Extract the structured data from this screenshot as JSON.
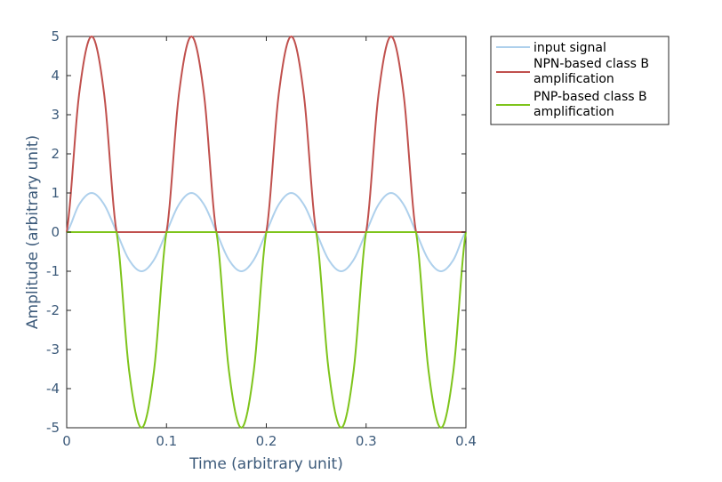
{
  "chart_data": {
    "type": "line",
    "title": "",
    "xlabel": "Time (arbitrary unit)",
    "ylabel": "Amplitude (arbitrary unit)",
    "xlim": [
      0,
      0.4
    ],
    "ylim": [
      -5,
      5
    ],
    "xticks": [
      0,
      0.1,
      0.2,
      0.3,
      0.4
    ],
    "xtick_labels": [
      "0",
      "0.1",
      "0.2",
      "0.3",
      "0.4"
    ],
    "yticks": [
      -5,
      -4,
      -3,
      -2,
      -1,
      0,
      1,
      2,
      3,
      4,
      5
    ],
    "ytick_labels": [
      "-5",
      "-4",
      "-3",
      "-2",
      "-1",
      "0",
      "1",
      "2",
      "3",
      "4",
      "5"
    ],
    "grid": false,
    "legend_position": "outside-top-right",
    "x": [
      0,
      0.0125,
      0.025,
      0.0375,
      0.05,
      0.0625,
      0.075,
      0.0875,
      0.1,
      0.1125,
      0.125,
      0.1375,
      0.15,
      0.1625,
      0.175,
      0.1875,
      0.2,
      0.2125,
      0.225,
      0.2375,
      0.25,
      0.2625,
      0.275,
      0.2875,
      0.3,
      0.3125,
      0.325,
      0.3375,
      0.35,
      0.3625,
      0.375,
      0.3875,
      0.4
    ],
    "series": [
      {
        "name": "input signal",
        "color": "#aed0ec",
        "values": [
          0,
          0.707,
          1,
          0.707,
          0,
          -0.707,
          -1,
          -0.707,
          0,
          0.707,
          1,
          0.707,
          0,
          -0.707,
          -1,
          -0.707,
          0,
          0.707,
          1,
          0.707,
          0,
          -0.707,
          -1,
          -0.707,
          0,
          0.707,
          1,
          0.707,
          0,
          -0.707,
          -1,
          -0.707,
          0
        ]
      },
      {
        "name_lines": [
          "NPN-based class B",
          "amplification"
        ],
        "color": "#c0504d",
        "values": [
          0,
          3.536,
          5,
          3.536,
          0,
          0,
          0,
          0,
          0,
          3.536,
          5,
          3.536,
          0,
          0,
          0,
          0,
          0,
          3.536,
          5,
          3.536,
          0,
          0,
          0,
          0,
          0,
          3.536,
          5,
          3.536,
          0,
          0,
          0,
          0,
          0
        ]
      },
      {
        "name_lines": [
          "PNP-based class B",
          "amplification"
        ],
        "color": "#7ec41b",
        "values": [
          0,
          0,
          0,
          0,
          0,
          -3.536,
          -5,
          -3.536,
          0,
          0,
          0,
          0,
          0,
          -3.536,
          -5,
          -3.536,
          0,
          0,
          0,
          0,
          0,
          -3.536,
          -5,
          -3.536,
          0,
          0,
          0,
          0,
          0,
          -3.536,
          -5,
          -3.536,
          0
        ]
      }
    ]
  }
}
